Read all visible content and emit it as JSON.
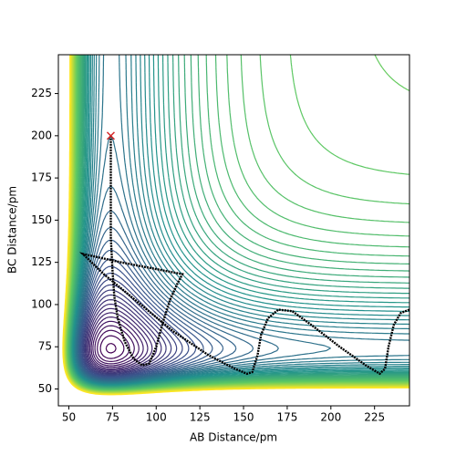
{
  "chart_data": {
    "type": "contour",
    "xlabel": "AB Distance/pm",
    "ylabel": "BC Distance/pm",
    "xlim": [
      44,
      245
    ],
    "ylim": [
      40,
      248
    ],
    "xticks": [
      50,
      75,
      100,
      125,
      150,
      175,
      200,
      225
    ],
    "yticks": [
      50,
      75,
      100,
      125,
      150,
      175,
      200,
      225
    ],
    "series": [
      {
        "color": "#000000",
        "x": [
          74,
          74,
          74,
          75,
          76,
          78,
          82,
          87,
          92,
          96,
          100,
          104,
          108,
          112,
          115,
          100,
          80,
          58,
          70,
          90,
          110,
          130,
          145,
          152,
          155,
          158,
          160,
          164,
          170,
          178,
          190,
          205,
          220,
          228,
          231,
          233,
          236,
          240,
          245
        ],
        "values": [
          200,
          170,
          140,
          120,
          105,
          92,
          78,
          68,
          64,
          65,
          75,
          90,
          103,
          112,
          118,
          121,
          125,
          130,
          118,
          101,
          84,
          70,
          62,
          59,
          60,
          70,
          82,
          92,
          97,
          96,
          87,
          75,
          64,
          59,
          62,
          75,
          88,
          95,
          97
        ]
      }
    ],
    "start": {
      "x": 74,
      "y": 200,
      "color": "#d62728"
    }
  }
}
